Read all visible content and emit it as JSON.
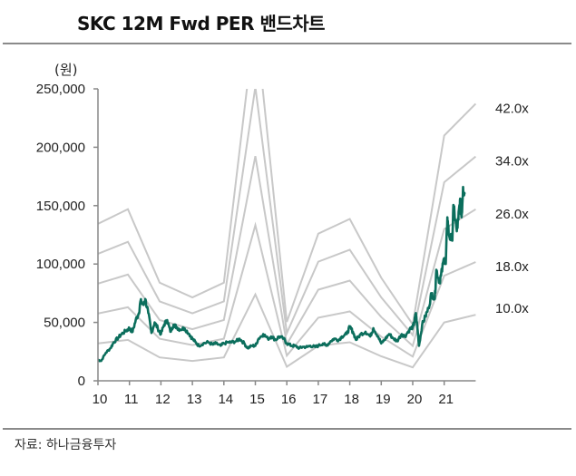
{
  "title": "SKC 12M Fwd PER 밴드차트",
  "source": "자료: 하나금융투자",
  "chart_data": {
    "type": "line",
    "title": "SKC 12M Fwd PER 밴드차트",
    "ylabel": "(원)",
    "xlabel": "",
    "xlim": [
      10,
      22
    ],
    "ylim": [
      0,
      250000
    ],
    "x_ticks": [
      "10",
      "11",
      "12",
      "13",
      "14",
      "15",
      "16",
      "17",
      "18",
      "19",
      "20",
      "21"
    ],
    "y_ticks": [
      "0",
      "50,000",
      "100,000",
      "150,000",
      "200,000",
      "250,000"
    ],
    "y_tick_values": [
      0,
      50000,
      100000,
      150000,
      200000,
      250000
    ],
    "grid": false,
    "colors": {
      "price": "#0b6e5c",
      "bands": "#c8c8c8"
    },
    "bands": {
      "multiples": [
        10,
        18,
        26,
        34,
        42
      ],
      "labels": [
        "10.0x",
        "18.0x",
        "26.0x",
        "34.0x",
        "42.0x"
      ],
      "eps_x": [
        10,
        10.95,
        11.96,
        13.0,
        14.0,
        15.0,
        16.0,
        17.0,
        18.0,
        19.0,
        20.0,
        21.0,
        22.0
      ],
      "eps": [
        3200,
        3500,
        2000,
        1700,
        2000,
        7400,
        1200,
        3000,
        3300,
        2100,
        1150,
        5000,
        5650
      ]
    },
    "price_series": {
      "x": [
        10.0,
        10.1,
        10.25,
        10.4,
        10.5,
        10.65,
        10.75,
        10.9,
        11.0,
        11.1,
        11.2,
        11.3,
        11.35,
        11.45,
        11.5,
        11.6,
        11.7,
        11.8,
        11.9,
        12.0,
        12.1,
        12.2,
        12.3,
        12.4,
        12.5,
        12.6,
        12.75,
        12.9,
        13.0,
        13.1,
        13.2,
        13.35,
        13.5,
        13.65,
        13.75,
        13.9,
        14.0,
        14.15,
        14.25,
        14.4,
        14.5,
        14.65,
        14.75,
        14.9,
        15.0,
        15.1,
        15.25,
        15.4,
        15.5,
        15.65,
        15.75,
        15.9,
        16.0,
        16.15,
        16.25,
        16.4,
        16.5,
        16.65,
        16.75,
        16.9,
        17.0,
        17.15,
        17.25,
        17.4,
        17.5,
        17.65,
        17.75,
        17.9,
        18.0,
        18.1,
        18.2,
        18.35,
        18.5,
        18.65,
        18.75,
        18.9,
        19.0,
        19.1,
        19.25,
        19.4,
        19.5,
        19.65,
        19.75,
        19.9,
        20.0,
        20.05,
        20.1,
        20.15,
        20.2,
        20.3,
        20.4,
        20.5,
        20.6,
        20.7,
        20.75,
        20.85,
        20.9,
        21.0,
        21.05,
        21.1,
        21.15,
        21.25,
        21.3,
        21.4,
        21.45,
        21.5,
        21.55,
        21.6,
        21.65
      ],
      "y": [
        18000,
        17000,
        24000,
        28000,
        33000,
        37000,
        40000,
        43000,
        45000,
        42000,
        52000,
        58000,
        68000,
        65000,
        70000,
        58000,
        41000,
        50000,
        45000,
        40000,
        48000,
        52000,
        42000,
        48000,
        46000,
        44000,
        45000,
        40000,
        36000,
        33000,
        30000,
        32000,
        33000,
        31000,
        32000,
        30000,
        32000,
        33000,
        33000,
        34000,
        36000,
        32000,
        28000,
        30000,
        30000,
        36000,
        40000,
        36000,
        38000,
        35000,
        38000,
        36000,
        32000,
        30000,
        30000,
        28000,
        29000,
        29000,
        30000,
        29000,
        30000,
        32000,
        30000,
        34000,
        36000,
        35000,
        38000,
        40000,
        46000,
        42000,
        35000,
        40000,
        42000,
        38000,
        45000,
        38000,
        32000,
        35000,
        40000,
        36000,
        34000,
        40000,
        38000,
        44000,
        46000,
        50000,
        58000,
        45000,
        30000,
        48000,
        55000,
        62000,
        75000,
        70000,
        95000,
        85000,
        90000,
        105000,
        100000,
        140000,
        125000,
        120000,
        150000,
        128000,
        138000,
        155000,
        140000,
        166000,
        160000
      ]
    }
  }
}
